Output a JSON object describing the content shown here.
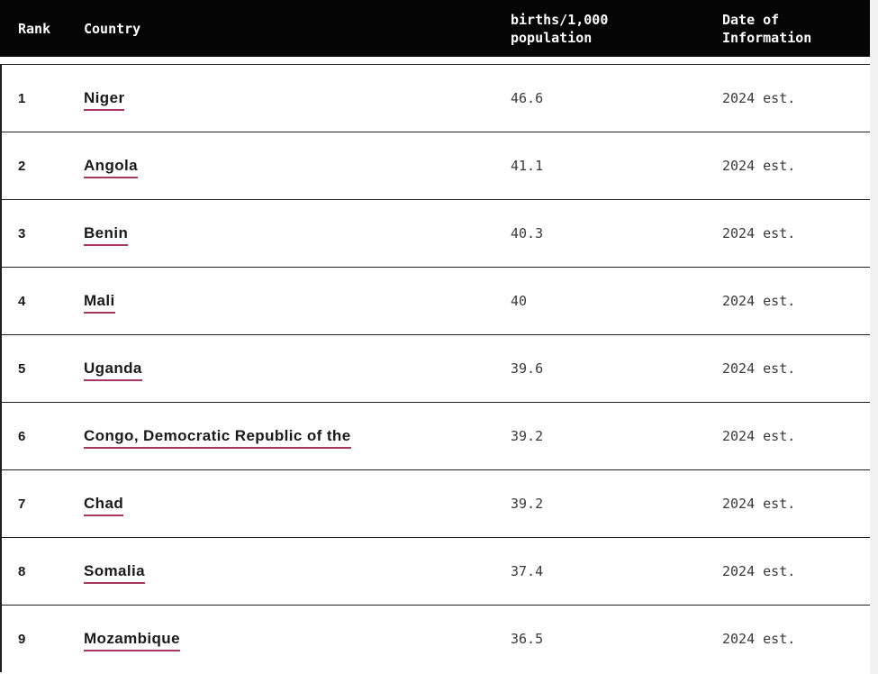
{
  "page": {
    "background": "#ffffff",
    "right_gutter_color": "#f2f2f2"
  },
  "table": {
    "header": {
      "background": "#050505",
      "text_color": "#ffffff",
      "columns": [
        {
          "key": "rank",
          "label": "Rank"
        },
        {
          "key": "country",
          "label": "Country"
        },
        {
          "key": "value",
          "label": "births/1,000 population"
        },
        {
          "key": "date",
          "label": "Date of Information"
        }
      ]
    },
    "rows": [
      {
        "rank": "1",
        "country": "Niger",
        "value": "46.6",
        "date": "2024 est."
      },
      {
        "rank": "2",
        "country": "Angola",
        "value": "41.1",
        "date": "2024 est."
      },
      {
        "rank": "3",
        "country": "Benin",
        "value": "40.3",
        "date": "2024 est."
      },
      {
        "rank": "4",
        "country": "Mali",
        "value": "40",
        "date": "2024 est."
      },
      {
        "rank": "5",
        "country": "Uganda",
        "value": "39.6",
        "date": "2024 est."
      },
      {
        "rank": "6",
        "country": "Congo, Democratic Republic of the",
        "value": "39.2",
        "date": "2024 est."
      },
      {
        "rank": "7",
        "country": "Chad",
        "value": "39.2",
        "date": "2024 est."
      },
      {
        "rank": "8",
        "country": "Somalia",
        "value": "37.4",
        "date": "2024 est."
      },
      {
        "rank": "9",
        "country": "Mozambique",
        "value": "36.5",
        "date": "2024 est."
      }
    ],
    "link_underline_color": "#a83862",
    "border_color": "#1f1f1f"
  }
}
